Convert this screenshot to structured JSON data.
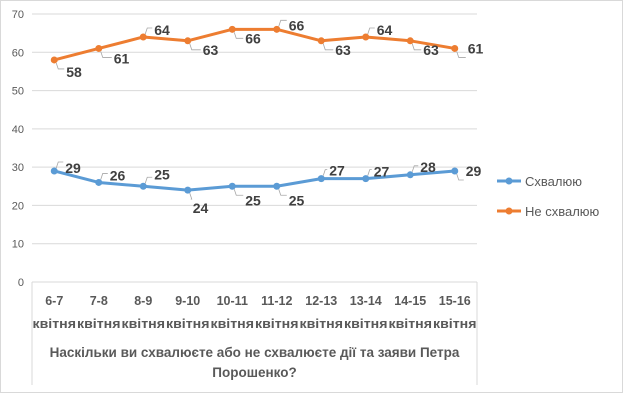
{
  "chart_data": {
    "type": "line",
    "title": "",
    "xlabel": "Наскільки ви схвалюєте або не схвалюєте дії та заяви Петра Порошенко?",
    "xlabel_lines": [
      "Наскільки ви схвалюєте або не схвалюєте дії та заяви Петра",
      "Порошенко?"
    ],
    "ylabel": "",
    "ylim": [
      0,
      70
    ],
    "yticks": [
      0,
      10,
      20,
      30,
      40,
      50,
      60,
      70
    ],
    "grid": true,
    "legend": "right",
    "categories": [
      [
        "6-7",
        "квітня"
      ],
      [
        "7-8",
        "квітня"
      ],
      [
        "8-9",
        "квітня"
      ],
      [
        "9-10",
        "квітня"
      ],
      [
        "10-11",
        "квітня"
      ],
      [
        "11-12",
        "квітня"
      ],
      [
        "12-13",
        "квітня"
      ],
      [
        "13-14",
        "квітня"
      ],
      [
        "14-15",
        "квітня"
      ],
      [
        "15-16",
        "квітня"
      ]
    ],
    "series": [
      {
        "name": "Схвалюю",
        "color": "#5b9bd5",
        "values": [
          29,
          26,
          25,
          24,
          25,
          25,
          27,
          27,
          28,
          29
        ]
      },
      {
        "name": "Не схвалюю",
        "color": "#ed7d31",
        "values": [
          58,
          61,
          64,
          63,
          66,
          66,
          63,
          64,
          63,
          61
        ]
      }
    ]
  }
}
